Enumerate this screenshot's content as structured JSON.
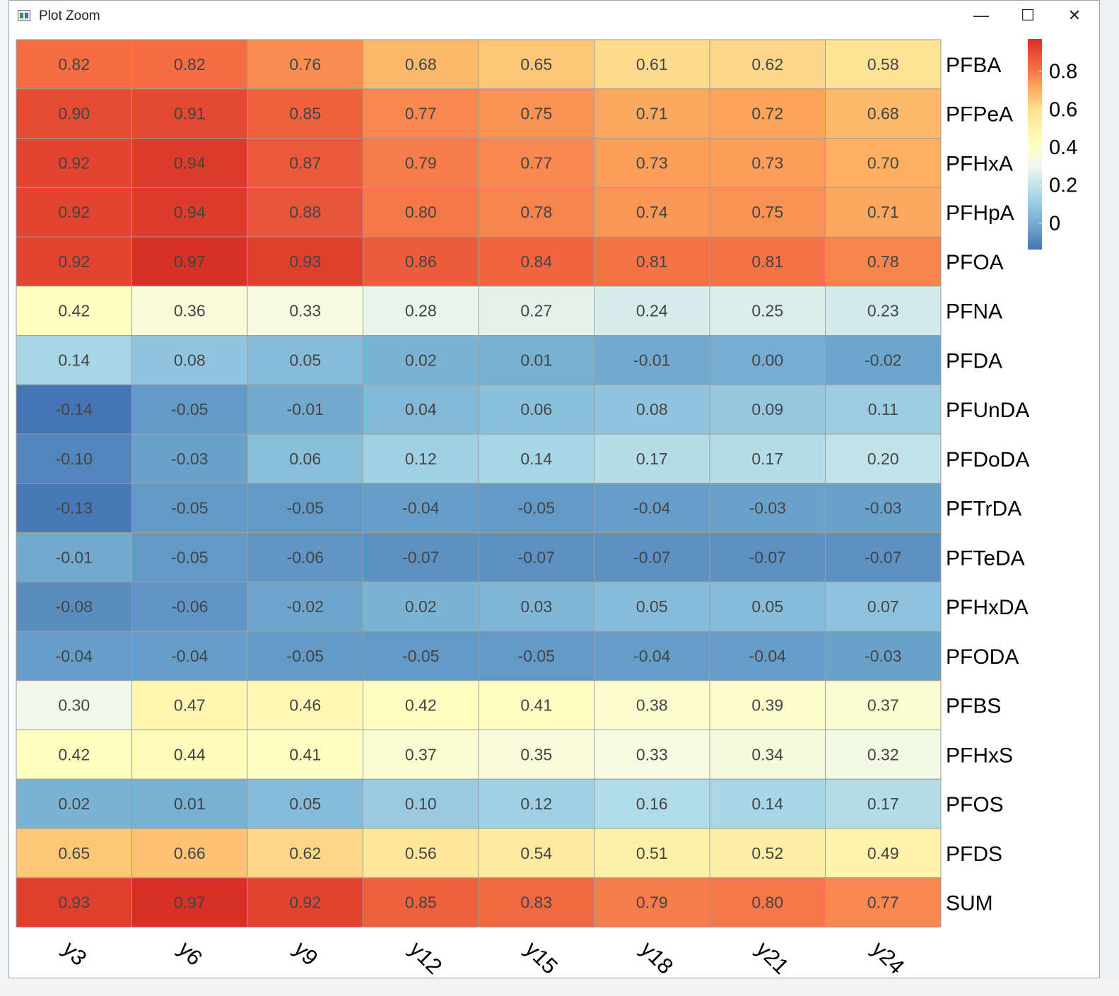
{
  "window": {
    "title": "Plot Zoom",
    "minimize_glyph": "—",
    "maximize_glyph": "☐",
    "close_glyph": "✕"
  },
  "chart_data": {
    "type": "heatmap",
    "title": "",
    "columns": [
      "y3",
      "y6",
      "y9",
      "y12",
      "y15",
      "y18",
      "y21",
      "y24"
    ],
    "rows": [
      "PFBA",
      "PFPeA",
      "PFHxA",
      "PFHpA",
      "PFOA",
      "PFNA",
      "PFDA",
      "PFUnDA",
      "PFDoDA",
      "PFTrDA",
      "PFTeDA",
      "PFHxDA",
      "PFODA",
      "PFBS",
      "PFHxS",
      "PFOS",
      "PFDS",
      "SUM"
    ],
    "values": [
      [
        0.82,
        0.82,
        0.76,
        0.68,
        0.65,
        0.61,
        0.62,
        0.58
      ],
      [
        0.9,
        0.91,
        0.85,
        0.77,
        0.75,
        0.71,
        0.72,
        0.68
      ],
      [
        0.92,
        0.94,
        0.87,
        0.79,
        0.77,
        0.73,
        0.73,
        0.7
      ],
      [
        0.92,
        0.94,
        0.88,
        0.8,
        0.78,
        0.74,
        0.75,
        0.71
      ],
      [
        0.92,
        0.97,
        0.93,
        0.86,
        0.84,
        0.81,
        0.81,
        0.78
      ],
      [
        0.42,
        0.36,
        0.33,
        0.28,
        0.27,
        0.24,
        0.25,
        0.23
      ],
      [
        0.14,
        0.08,
        0.05,
        0.02,
        0.01,
        -0.01,
        -0.0,
        -0.02
      ],
      [
        -0.14,
        -0.05,
        -0.01,
        0.04,
        0.06,
        0.08,
        0.09,
        0.11
      ],
      [
        -0.1,
        -0.03,
        0.06,
        0.12,
        0.14,
        0.17,
        0.17,
        0.2
      ],
      [
        -0.13,
        -0.05,
        -0.05,
        -0.04,
        -0.05,
        -0.04,
        -0.03,
        -0.03
      ],
      [
        -0.01,
        -0.05,
        -0.06,
        -0.07,
        -0.07,
        -0.07,
        -0.07,
        -0.07
      ],
      [
        -0.08,
        -0.06,
        -0.02,
        0.02,
        0.03,
        0.05,
        0.05,
        0.07
      ],
      [
        -0.04,
        -0.04,
        -0.05,
        -0.05,
        -0.05,
        -0.04,
        -0.04,
        -0.03
      ],
      [
        0.3,
        0.47,
        0.46,
        0.42,
        0.41,
        0.38,
        0.39,
        0.37
      ],
      [
        0.42,
        0.44,
        0.41,
        0.37,
        0.35,
        0.33,
        0.34,
        0.32
      ],
      [
        0.02,
        0.01,
        0.05,
        0.1,
        0.12,
        0.16,
        0.14,
        0.17
      ],
      [
        0.65,
        0.66,
        0.62,
        0.56,
        0.54,
        0.51,
        0.52,
        0.49
      ],
      [
        0.93,
        0.97,
        0.92,
        0.85,
        0.83,
        0.79,
        0.8,
        0.77
      ]
    ],
    "value_format": "2 decimals",
    "color_scale": {
      "range": [
        -0.14,
        0.97
      ],
      "stops": [
        {
          "value": -0.14,
          "color": "#4575b4"
        },
        {
          "value": 0.0,
          "color": "#74add1"
        },
        {
          "value": 0.15,
          "color": "#abd9e9"
        },
        {
          "value": 0.3,
          "color": "#f2f8ec"
        },
        {
          "value": 0.42,
          "color": "#ffffbf"
        },
        {
          "value": 0.6,
          "color": "#fee090"
        },
        {
          "value": 0.7,
          "color": "#fdae61"
        },
        {
          "value": 0.82,
          "color": "#f46d43"
        },
        {
          "value": 0.97,
          "color": "#d73027"
        }
      ]
    },
    "legend": {
      "ticks": [
        0,
        0.2,
        0.4,
        0.6,
        0.8
      ],
      "tick_labels": [
        "0",
        "0.2",
        "0.4",
        "0.6",
        "0.8"
      ],
      "placement": "top-right"
    },
    "cell_text_color": "#444444",
    "grid_color": "#9e9e9e"
  }
}
